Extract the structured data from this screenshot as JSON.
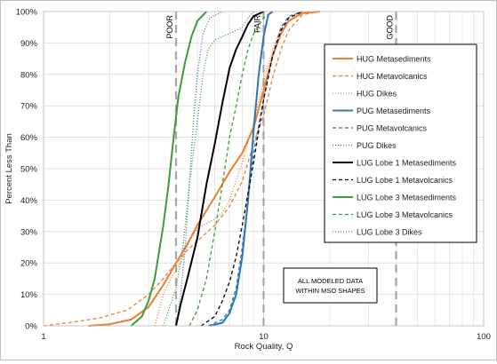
{
  "chart_data": {
    "type": "line",
    "xscale": "log",
    "xlim": [
      1,
      100
    ],
    "ylim": [
      0,
      100
    ],
    "xlabel": "Rock Quality, Q",
    "ylabel": "Percent Less Than",
    "x_ticks": [
      1,
      10,
      100
    ],
    "y_ticks": [
      0,
      10,
      20,
      30,
      40,
      50,
      60,
      70,
      80,
      90,
      100
    ],
    "y_tick_suffix": "%",
    "grid": "log-minor vertical, major horizontal",
    "legend_placement": "right",
    "thresholds": [
      {
        "label": "POOR",
        "x": 4
      },
      {
        "label": "FAIR",
        "x": 10
      },
      {
        "label": "GOOD",
        "x": 40
      }
    ],
    "annotation": [
      "ALL MODELED DATA",
      "WITHIN MSO SHAPES"
    ],
    "series": [
      {
        "name": "HUG Metasediments",
        "color": "#ed7d31",
        "dash": "solid",
        "width": 2,
        "points": [
          [
            1.6,
            0
          ],
          [
            2.0,
            0.5
          ],
          [
            2.5,
            2
          ],
          [
            3.0,
            6
          ],
          [
            3.5,
            13
          ],
          [
            4.0,
            20
          ],
          [
            4.5,
            26
          ],
          [
            5.0,
            32
          ],
          [
            6.0,
            41
          ],
          [
            7.0,
            49
          ],
          [
            8.0,
            55
          ],
          [
            9.0,
            63
          ],
          [
            10.0,
            75
          ],
          [
            11.0,
            86
          ],
          [
            12.0,
            93
          ],
          [
            13.0,
            97
          ],
          [
            15.0,
            99.5
          ],
          [
            18.0,
            100
          ]
        ]
      },
      {
        "name": "HUG Metavolcanics",
        "color": "#ed7d31",
        "dash": "dashed",
        "width": 1.3,
        "points": [
          [
            1.0,
            0
          ],
          [
            1.3,
            1
          ],
          [
            1.8,
            2.5
          ],
          [
            2.4,
            5
          ],
          [
            3.0,
            10
          ],
          [
            3.5,
            15
          ],
          [
            4.0,
            20
          ],
          [
            4.5,
            24
          ],
          [
            5.0,
            27
          ],
          [
            6.0,
            32
          ],
          [
            7.0,
            38
          ],
          [
            8.0,
            46
          ],
          [
            9.0,
            58
          ],
          [
            10.0,
            67
          ],
          [
            11.0,
            79
          ],
          [
            12.0,
            88
          ],
          [
            13.0,
            94
          ],
          [
            15.0,
            99
          ],
          [
            18.0,
            100
          ]
        ]
      },
      {
        "name": "HUG Dikes",
        "color": "#ed7d31",
        "dash": "dotted",
        "width": 1.3,
        "points": [
          [
            3.2,
            0
          ],
          [
            3.5,
            10
          ],
          [
            3.8,
            15
          ],
          [
            4.2,
            20
          ],
          [
            4.6,
            27
          ],
          [
            5.0,
            31
          ],
          [
            6.0,
            34
          ],
          [
            6.5,
            36
          ],
          [
            7.0,
            40
          ],
          [
            8.0,
            52
          ],
          [
            9.0,
            65
          ],
          [
            10.0,
            78
          ],
          [
            11.0,
            88
          ],
          [
            12.0,
            95
          ],
          [
            14.0,
            99
          ],
          [
            17.0,
            100
          ]
        ]
      },
      {
        "name": "PUG Metasediments",
        "color": "#2e75b6",
        "dash": "solid",
        "width": 2,
        "points": [
          [
            5.7,
            0
          ],
          [
            6.5,
            1
          ],
          [
            7.0,
            4
          ],
          [
            7.5,
            10
          ],
          [
            8.0,
            22
          ],
          [
            8.5,
            40
          ],
          [
            9.0,
            62
          ],
          [
            9.5,
            80
          ],
          [
            10.0,
            92
          ],
          [
            10.5,
            99
          ],
          [
            11.0,
            100
          ]
        ]
      },
      {
        "name": "PUG Metavolcanics",
        "color": "#2e75b6",
        "dash": "dashed",
        "width": 1.3,
        "points": [
          [
            5.6,
            0
          ],
          [
            6.5,
            2
          ],
          [
            7.0,
            5
          ],
          [
            7.5,
            12
          ],
          [
            8.0,
            25
          ],
          [
            8.5,
            40
          ],
          [
            9.0,
            55
          ],
          [
            10.0,
            72
          ],
          [
            11.0,
            86
          ],
          [
            12.0,
            95
          ],
          [
            13.0,
            98.5
          ],
          [
            15.0,
            100
          ]
        ]
      },
      {
        "name": "PUG Dikes",
        "color": "#2e75b6",
        "dash": "dotted",
        "width": 1.3,
        "points": [
          [
            4.0,
            0
          ],
          [
            4.2,
            10
          ],
          [
            4.4,
            25
          ],
          [
            4.6,
            45
          ],
          [
            4.8,
            65
          ],
          [
            5.0,
            80
          ],
          [
            5.3,
            93
          ],
          [
            5.7,
            98
          ],
          [
            6.5,
            100
          ]
        ]
      },
      {
        "name": "LUG Lobe 1 Metasediments",
        "color": "#000000",
        "dash": "solid",
        "width": 2,
        "points": [
          [
            4.0,
            0
          ],
          [
            4.2,
            7
          ],
          [
            4.5,
            15
          ],
          [
            5.0,
            28
          ],
          [
            5.5,
            45
          ],
          [
            6.0,
            58
          ],
          [
            6.5,
            71
          ],
          [
            7.0,
            82
          ],
          [
            7.5,
            88
          ],
          [
            8.0,
            92
          ],
          [
            8.5,
            96
          ],
          [
            9.0,
            98.5
          ],
          [
            10.0,
            100
          ]
        ]
      },
      {
        "name": "LUG Lobe 1 Metavolcanics",
        "color": "#000000",
        "dash": "dashed",
        "width": 1.3,
        "points": [
          [
            5.2,
            0
          ],
          [
            6.0,
            3
          ],
          [
            6.5,
            8
          ],
          [
            7.0,
            14
          ],
          [
            7.5,
            22
          ],
          [
            8.0,
            32
          ],
          [
            9.0,
            52
          ],
          [
            10.0,
            72
          ],
          [
            11.0,
            86
          ],
          [
            12.0,
            94
          ],
          [
            13.0,
            98
          ],
          [
            15.0,
            100
          ]
        ]
      },
      {
        "name": "LUG Lobe 3 Metasediments",
        "color": "#3c9c3c",
        "dash": "solid",
        "width": 2,
        "points": [
          [
            2.5,
            0
          ],
          [
            2.8,
            3
          ],
          [
            3.0,
            8
          ],
          [
            3.2,
            15
          ],
          [
            3.5,
            32
          ],
          [
            3.7,
            45
          ],
          [
            3.9,
            60
          ],
          [
            4.1,
            73
          ],
          [
            4.4,
            84
          ],
          [
            4.7,
            92
          ],
          [
            5.0,
            97
          ],
          [
            5.5,
            100
          ]
        ]
      },
      {
        "name": "LUG Lobe 3 Metavolcanics",
        "color": "#3c9c3c",
        "dash": "dashed",
        "width": 1.3,
        "points": [
          [
            4.6,
            0
          ],
          [
            5.0,
            5
          ],
          [
            5.5,
            15
          ],
          [
            6.0,
            30
          ],
          [
            6.5,
            45
          ],
          [
            7.0,
            60
          ],
          [
            7.5,
            70
          ],
          [
            8.0,
            80
          ],
          [
            8.5,
            88
          ],
          [
            9.0,
            93
          ],
          [
            10.0,
            98
          ],
          [
            11.0,
            100
          ]
        ]
      },
      {
        "name": "LUG Lobe 3 Dikes",
        "color": "#3c9c3c",
        "dash": "dotted",
        "width": 1.3,
        "points": [
          [
            3.5,
            0
          ],
          [
            3.7,
            5
          ],
          [
            4.0,
            12
          ],
          [
            4.3,
            25
          ],
          [
            4.6,
            45
          ],
          [
            5.0,
            65
          ],
          [
            5.3,
            80
          ],
          [
            5.6,
            88
          ],
          [
            6.0,
            91
          ],
          [
            7.0,
            93
          ],
          [
            8.0,
            95
          ],
          [
            8.5,
            98
          ],
          [
            9.0,
            100
          ]
        ]
      }
    ]
  }
}
